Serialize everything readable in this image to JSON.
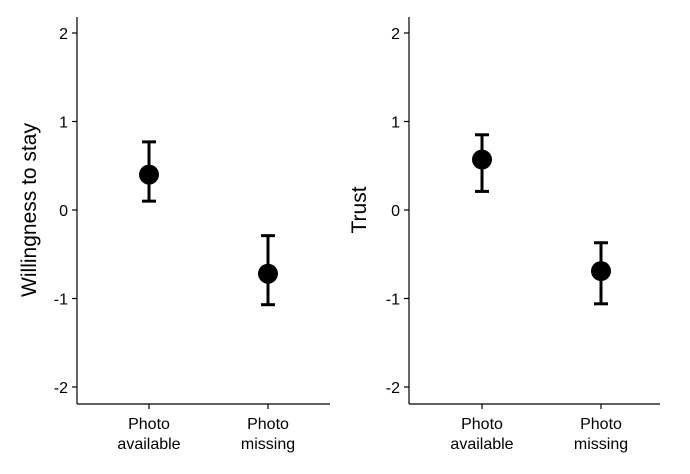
{
  "chart_data": [
    {
      "type": "scatter",
      "ylabel": "Willingness to stay",
      "xlabel": "",
      "categories": [
        [
          "Photo",
          "available"
        ],
        [
          "Photo",
          "missing"
        ]
      ],
      "yticks": [
        "2",
        "1",
        "0",
        "-1",
        "-2"
      ],
      "ylim": [
        -2.2,
        2.2
      ],
      "grid": false,
      "series": [
        {
          "values": [
            0.4,
            -0.72
          ],
          "error_low": [
            0.1,
            -1.07
          ],
          "error_high": [
            0.77,
            -0.29
          ]
        }
      ]
    },
    {
      "type": "scatter",
      "ylabel": "Trust",
      "xlabel": "",
      "categories": [
        [
          "Photo",
          "available"
        ],
        [
          "Photo",
          "missing"
        ]
      ],
      "yticks": [
        "2",
        "1",
        "0",
        "-1",
        "-2"
      ],
      "ylim": [
        -2.2,
        2.2
      ],
      "grid": false,
      "series": [
        {
          "values": [
            0.57,
            -0.69
          ],
          "error_low": [
            0.21,
            -1.06
          ],
          "error_high": [
            0.85,
            -0.37
          ]
        }
      ]
    }
  ],
  "style": {
    "point_color": "#000000",
    "axis_color": "#000000"
  }
}
